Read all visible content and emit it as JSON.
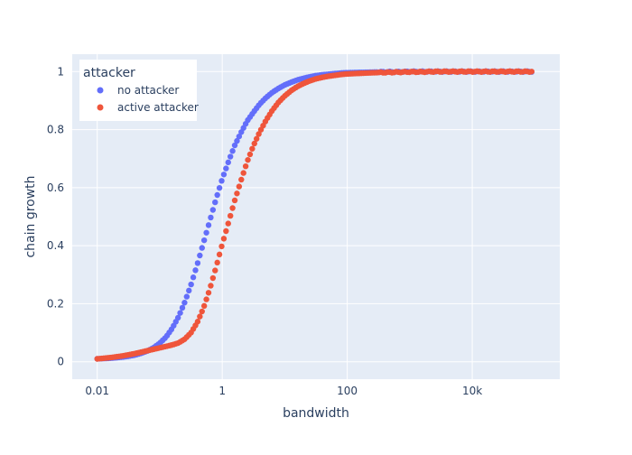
{
  "chart_data": {
    "type": "scatter",
    "xscale": "log",
    "xlabel": "bandwidth",
    "ylabel": "chain growth",
    "xlim_log10": [
      -2.4,
      5.4
    ],
    "ylim": [
      -0.06,
      1.06
    ],
    "xticks": [
      {
        "value": 0.01,
        "label": "0.01"
      },
      {
        "value": 1,
        "label": "1"
      },
      {
        "value": 100,
        "label": "100"
      },
      {
        "value": 10000,
        "label": "10k"
      }
    ],
    "yticks": [
      {
        "value": 0,
        "label": "0"
      },
      {
        "value": 0.2,
        "label": "0.2"
      },
      {
        "value": 0.4,
        "label": "0.4"
      },
      {
        "value": 0.6,
        "label": "0.6"
      },
      {
        "value": 0.8,
        "label": "0.8"
      },
      {
        "value": 1,
        "label": "1"
      }
    ],
    "legend": {
      "title": "attacker",
      "position": "top-left"
    },
    "series": [
      {
        "name": "no attacker",
        "color": "#636efa",
        "x": [
          0.01,
          0.0126,
          0.0158,
          0.02,
          0.0251,
          0.0316,
          0.0398,
          0.0501,
          0.0631,
          0.0794,
          0.1,
          0.126,
          0.158,
          0.2,
          0.251,
          0.316,
          0.398,
          0.501,
          0.631,
          0.794,
          1,
          1.26,
          1.58,
          2,
          2.51,
          3.16,
          3.98,
          5.01,
          6.31,
          7.94,
          10,
          12.6,
          15.8,
          20,
          25.1,
          31.6,
          39.8,
          50.1,
          63.1,
          79.4,
          100,
          158,
          251,
          398,
          631,
          1000,
          1585,
          2512,
          3981,
          6310,
          10000,
          15849,
          25119,
          39811,
          63096,
          100000
        ],
        "y": [
          0.01,
          0.011,
          0.012,
          0.014,
          0.016,
          0.019,
          0.023,
          0.029,
          0.037,
          0.048,
          0.064,
          0.085,
          0.115,
          0.155,
          0.205,
          0.265,
          0.335,
          0.41,
          0.485,
          0.56,
          0.63,
          0.69,
          0.745,
          0.79,
          0.83,
          0.86,
          0.888,
          0.91,
          0.928,
          0.942,
          0.954,
          0.963,
          0.971,
          0.977,
          0.982,
          0.986,
          0.989,
          0.991,
          0.993,
          0.995,
          0.996,
          0.997,
          0.998,
          0.999,
          0.999,
          1,
          1,
          1,
          1,
          1,
          1,
          1,
          1,
          1,
          1,
          1
        ]
      },
      {
        "name": "active attacker",
        "color": "#ef553b",
        "x": [
          0.01,
          0.0126,
          0.0158,
          0.02,
          0.0251,
          0.0316,
          0.0398,
          0.0501,
          0.0631,
          0.0794,
          0.1,
          0.126,
          0.158,
          0.2,
          0.251,
          0.316,
          0.398,
          0.501,
          0.631,
          0.794,
          1,
          1.26,
          1.58,
          2,
          2.51,
          3.16,
          3.98,
          5.01,
          6.31,
          7.94,
          10,
          12.6,
          15.8,
          20,
          25.1,
          31.6,
          39.8,
          50.1,
          63.1,
          79.4,
          100,
          158,
          251,
          398,
          631,
          1000,
          1585,
          2512,
          3981,
          6310,
          10000,
          15849,
          25119,
          39811,
          63096,
          100000
        ],
        "y": [
          0.01,
          0.012,
          0.014,
          0.017,
          0.02,
          0.024,
          0.028,
          0.033,
          0.038,
          0.043,
          0.048,
          0.053,
          0.058,
          0.065,
          0.078,
          0.1,
          0.135,
          0.185,
          0.25,
          0.325,
          0.405,
          0.48,
          0.555,
          0.625,
          0.69,
          0.745,
          0.792,
          0.832,
          0.866,
          0.894,
          0.916,
          0.934,
          0.948,
          0.959,
          0.968,
          0.975,
          0.98,
          0.984,
          0.987,
          0.99,
          0.992,
          0.994,
          0.996,
          0.997,
          0.998,
          0.999,
          0.999,
          1,
          1,
          1,
          1,
          1,
          1,
          1,
          1,
          1
        ]
      }
    ]
  }
}
